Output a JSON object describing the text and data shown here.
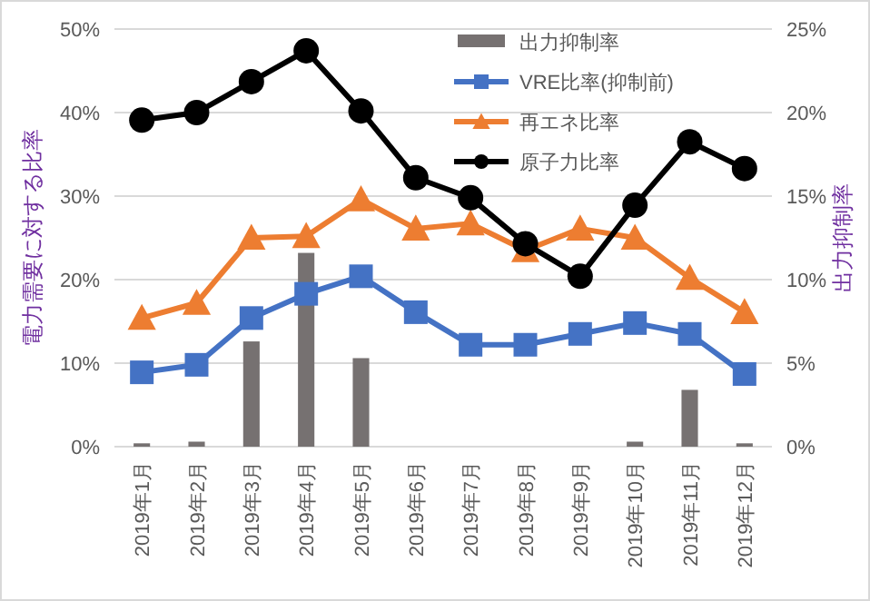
{
  "chart_data": {
    "type": "line",
    "ylabel": "電力需要に対する比率",
    "y2label": "出力抑制率",
    "categories": [
      "2019年1月",
      "2019年2月",
      "2019年3月",
      "2019年4月",
      "2019年5月",
      "2019年6月",
      "2019年7月",
      "2019年8月",
      "2019年9月",
      "2019年10月",
      "2019年11月",
      "2019年12月"
    ],
    "ylim": [
      0,
      50
    ],
    "yticks": [
      {
        "value": 0,
        "label": "0%"
      },
      {
        "value": 10,
        "label": "10%"
      },
      {
        "value": 20,
        "label": "20%"
      },
      {
        "value": 30,
        "label": "30%"
      },
      {
        "value": 40,
        "label": "40%"
      },
      {
        "value": 50,
        "label": "50%"
      }
    ],
    "y2lim": [
      0,
      25
    ],
    "y2ticks": [
      {
        "value": 0,
        "label": "0%"
      },
      {
        "value": 5,
        "label": "5%"
      },
      {
        "value": 10,
        "label": "10%"
      },
      {
        "value": 15,
        "label": "15%"
      },
      {
        "value": 20,
        "label": "20%"
      },
      {
        "value": 25,
        "label": "25%"
      }
    ],
    "grid": "y",
    "legend": "top right",
    "series": [
      {
        "name": "出力抑制率",
        "type": "bar",
        "axis": "y2",
        "color": "#767171",
        "values": [
          0.2,
          0.3,
          6.3,
          11.6,
          5.3,
          null,
          null,
          null,
          null,
          0.3,
          3.4,
          0.2
        ]
      },
      {
        "name": "VRE比率(抑制前)",
        "marker": "square",
        "color": "#4472c4",
        "values": [
          8.9,
          9.8,
          15.4,
          18.3,
          20.4,
          16.1,
          12.2,
          12.2,
          13.5,
          14.8,
          13.5,
          8.7
        ]
      },
      {
        "name": "再エネ比率",
        "marker": "triangle",
        "color": "#ed7d31",
        "values": [
          15.4,
          17.2,
          25.0,
          25.2,
          29.6,
          26.1,
          26.7,
          23.5,
          26.1,
          25.0,
          20.2,
          16.1
        ]
      },
      {
        "name": "原子力比率",
        "marker": "circle",
        "color": "#000000",
        "values": [
          39.1,
          40.0,
          43.7,
          47.4,
          40.2,
          32.2,
          29.8,
          24.3,
          20.4,
          28.9,
          36.5,
          33.3
        ]
      }
    ]
  }
}
